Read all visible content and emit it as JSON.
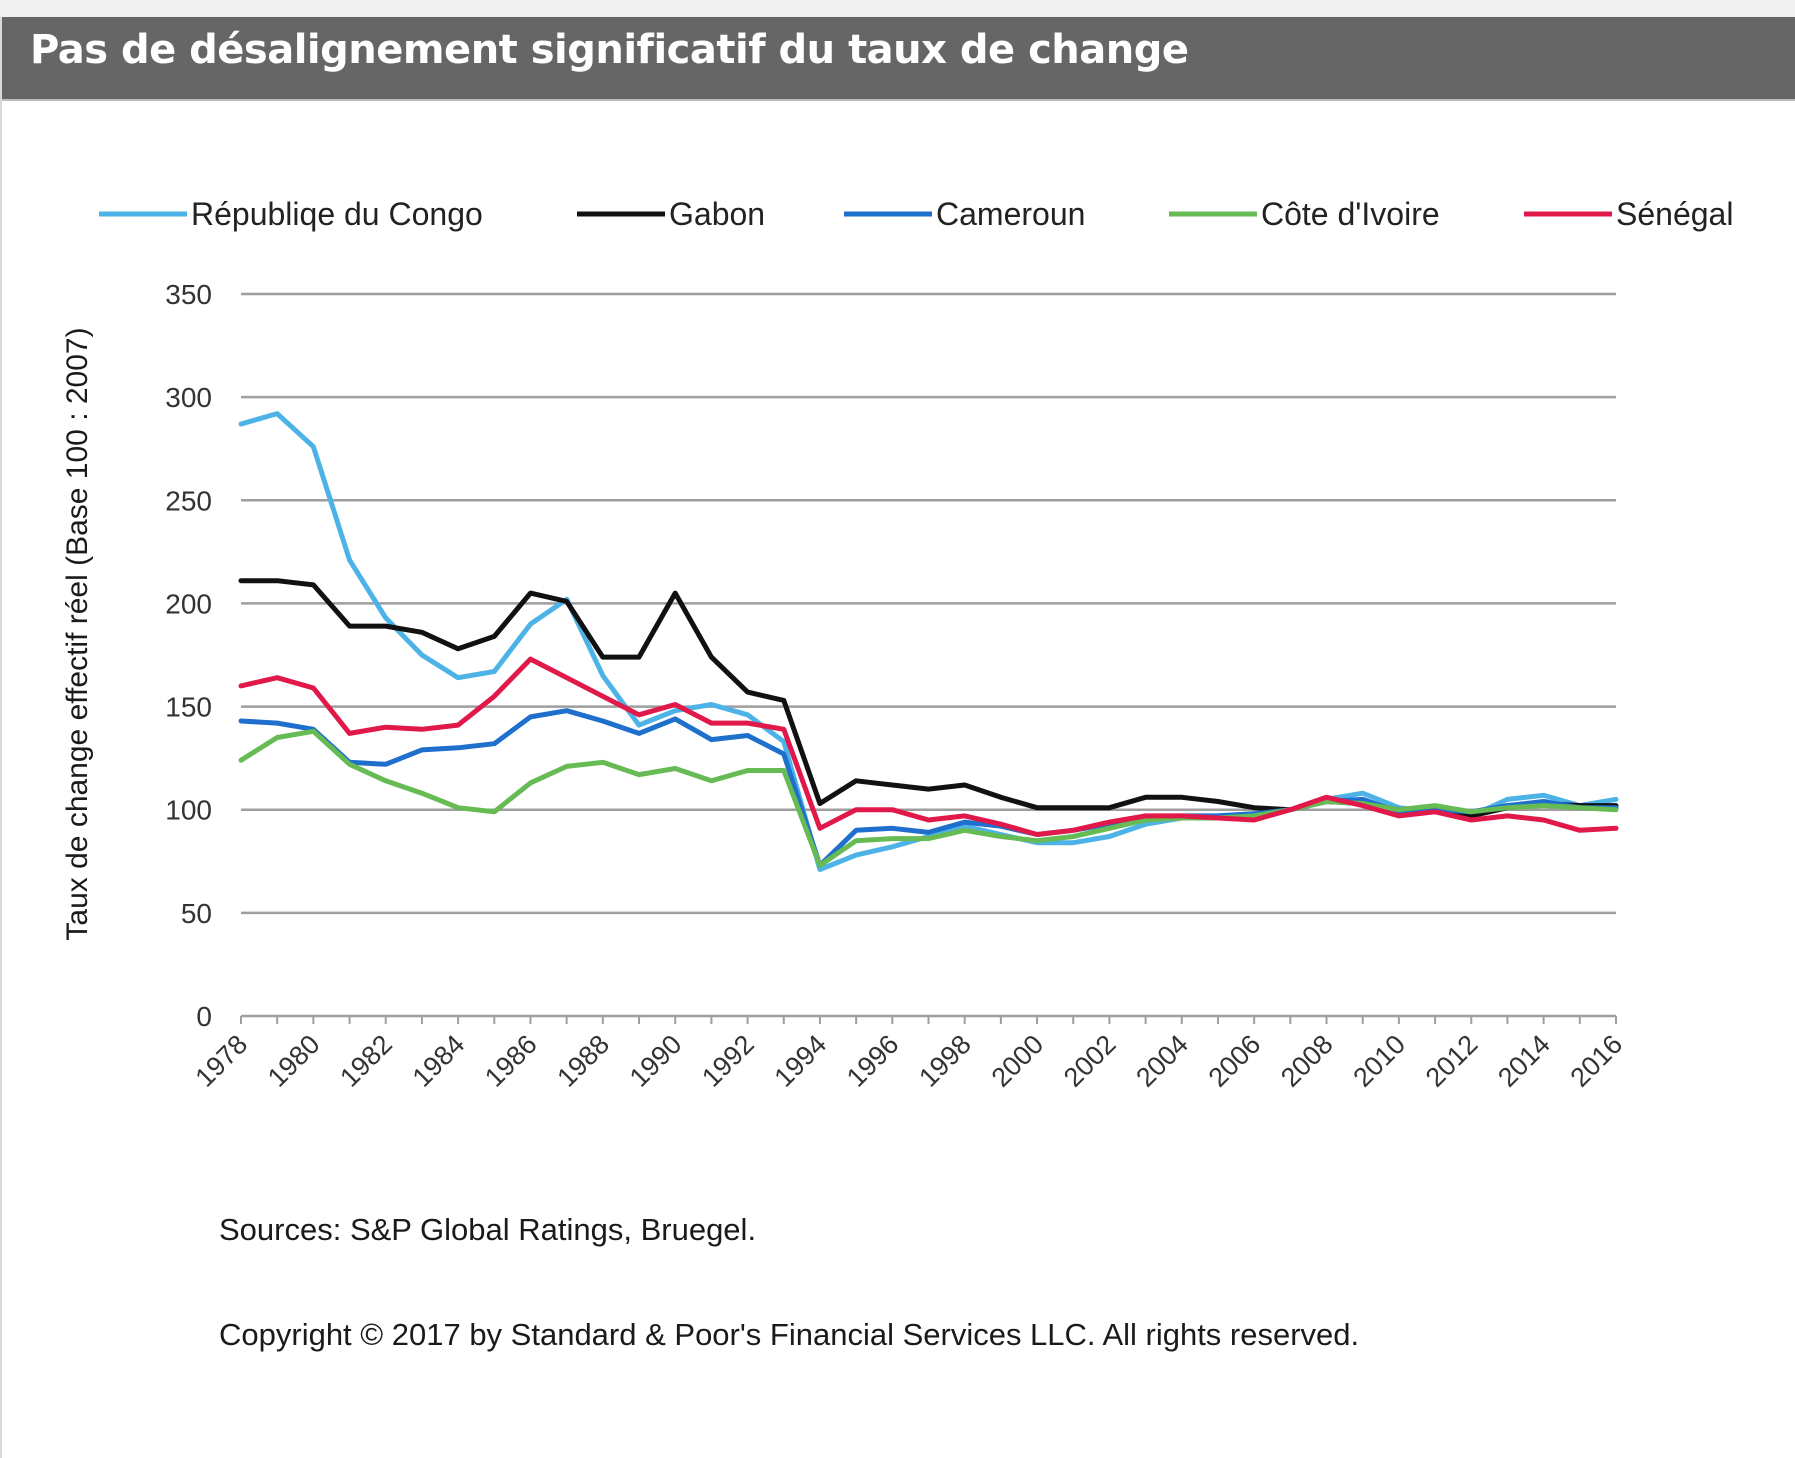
{
  "header": {
    "title": "Pas de désalignement significatif du taux de change"
  },
  "chart_data": {
    "type": "line",
    "title": "",
    "xlabel": "",
    "ylabel": "Taux de change effectif réel (Base 100 : 2007)",
    "x": [
      1978,
      1979,
      1980,
      1981,
      1982,
      1983,
      1984,
      1985,
      1986,
      1987,
      1988,
      1989,
      1990,
      1991,
      1992,
      1993,
      1994,
      1995,
      1996,
      1997,
      1998,
      1999,
      2000,
      2001,
      2002,
      2003,
      2004,
      2005,
      2006,
      2007,
      2008,
      2009,
      2010,
      2011,
      2012,
      2013,
      2014,
      2015,
      2016
    ],
    "xticks": [
      "1978",
      "1980",
      "1982",
      "1984",
      "1986",
      "1988",
      "1990",
      "1992",
      "1994",
      "1996",
      "1998",
      "2000",
      "2002",
      "2004",
      "2006",
      "2008",
      "2010",
      "2012",
      "2014",
      "2016"
    ],
    "ylim": [
      0,
      350
    ],
    "yticks": [
      "0",
      "50",
      "100",
      "150",
      "200",
      "250",
      "300",
      "350"
    ],
    "grid": true,
    "legend_position": "top",
    "series": [
      {
        "name": "Républiqe du Congo",
        "color": "#4db3e6",
        "values": [
          287,
          292,
          276,
          221,
          193,
          175,
          164,
          167,
          190,
          202,
          165,
          141,
          148,
          151,
          146,
          133,
          71,
          78,
          82,
          87,
          92,
          88,
          84,
          84,
          87,
          93,
          96,
          97,
          98,
          100,
          105,
          108,
          101,
          99,
          97,
          105,
          107,
          102,
          105
        ]
      },
      {
        "name": "Gabon",
        "color": "#111111",
        "values": [
          211,
          211,
          209,
          189,
          189,
          186,
          178,
          184,
          205,
          201,
          174,
          174,
          205,
          174,
          157,
          153,
          103,
          114,
          112,
          110,
          112,
          106,
          101,
          101,
          101,
          106,
          106,
          104,
          101,
          100,
          104,
          103,
          100,
          101,
          97,
          101,
          103,
          102,
          102
        ]
      },
      {
        "name": "Cameroun",
        "color": "#1f6fcc",
        "values": [
          143,
          142,
          139,
          123,
          122,
          129,
          130,
          132,
          145,
          148,
          143,
          137,
          144,
          134,
          136,
          127,
          73,
          90,
          91,
          89,
          94,
          92,
          88,
          90,
          93,
          96,
          97,
          97,
          98,
          100,
          104,
          105,
          99,
          100,
          99,
          102,
          104,
          101,
          101
        ]
      },
      {
        "name": "Côte d'Ivoire",
        "color": "#66bb55",
        "values": [
          124,
          135,
          138,
          122,
          114,
          108,
          101,
          99,
          113,
          121,
          123,
          117,
          120,
          114,
          119,
          119,
          73,
          85,
          86,
          86,
          90,
          87,
          85,
          87,
          91,
          95,
          96,
          96,
          97,
          100,
          104,
          103,
          100,
          102,
          99,
          101,
          102,
          101,
          100
        ]
      },
      {
        "name": "Sénégal",
        "color": "#e0194a",
        "values": [
          160,
          164,
          159,
          137,
          140,
          139,
          141,
          155,
          173,
          164,
          155,
          146,
          151,
          142,
          142,
          139,
          91,
          100,
          100,
          95,
          97,
          93,
          88,
          90,
          94,
          97,
          97,
          96,
          95,
          100,
          106,
          102,
          97,
          99,
          95,
          97,
          95,
          90,
          91
        ]
      }
    ]
  },
  "footer": {
    "sources": "Sources: S&P Global Ratings, Bruegel.",
    "copyright": "Copyright © 2017 by Standard & Poor's Financial Services LLC. All rights reserved."
  }
}
